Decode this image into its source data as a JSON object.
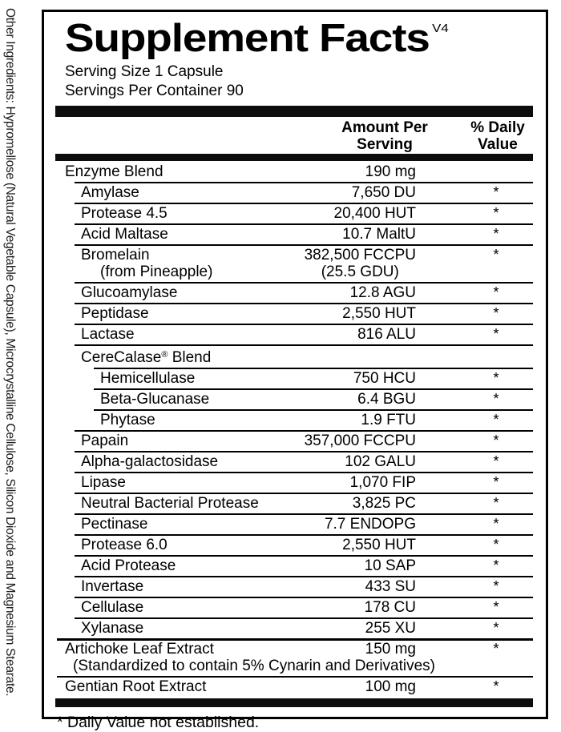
{
  "label": {
    "title": "Supplement Facts",
    "version": "V4",
    "serving_size": "Serving Size 1 Capsule",
    "servings_per_container": "Servings Per Container 90",
    "amount_header": "Amount Per\nServing",
    "dv_header": "% Daily\nValue",
    "footnote": "* Daily Value not established.",
    "side_text": "Other Ingredients: Hypromellose (Natural Vegetable Capsule), Microcrystalline Cellulose, Silicon Dioxide and Magnesium Stearate.",
    "colors": {
      "text": "#000000",
      "background": "#ffffff",
      "rule": "#000000"
    },
    "rows": [
      {
        "name": "Enzyme Blend",
        "amount": "190 mg",
        "dv": "",
        "level": 0,
        "divider": "none"
      },
      {
        "name": "Amylase",
        "amount": "7,650 DU",
        "dv": "*",
        "level": 1,
        "divider": "normal"
      },
      {
        "name": "Protease 4.5",
        "amount": "20,400 HUT",
        "dv": "*",
        "level": 1,
        "divider": "normal"
      },
      {
        "name": "Acid Maltase",
        "amount": "10.7 MaltU",
        "dv": "*",
        "level": 1,
        "divider": "normal"
      },
      {
        "name": "Bromelain",
        "name2": "(from Pineapple)",
        "amount": "382,500 FCCPU",
        "amount2": "(25.5 GDU)",
        "dv": "*",
        "level": 1,
        "divider": "normal"
      },
      {
        "name": "Glucoamylase",
        "amount": "12.8 AGU",
        "dv": "*",
        "level": 1,
        "divider": "normal"
      },
      {
        "name": "Peptidase",
        "amount": "2,550 HUT",
        "dv": "*",
        "level": 1,
        "divider": "normal"
      },
      {
        "name": "Lactase",
        "amount": "816 ALU",
        "dv": "*",
        "level": 1,
        "divider": "normal"
      },
      {
        "name": "CereCalase® Blend",
        "amount": "",
        "dv": "",
        "level": 1,
        "divider": "normal"
      },
      {
        "name": "Hemicellulase",
        "amount": "750 HCU",
        "dv": "*",
        "level": 2,
        "divider": "normal"
      },
      {
        "name": "Beta-Glucanase",
        "amount": "6.4 BGU",
        "dv": "*",
        "level": 2,
        "divider": "normal"
      },
      {
        "name": "Phytase",
        "amount": "1.9 FTU",
        "dv": "*",
        "level": 2,
        "divider": "normal"
      },
      {
        "name": "Papain",
        "amount": "357,000 FCCPU",
        "dv": "*",
        "level": 1,
        "divider": "normal"
      },
      {
        "name": "Alpha-galactosidase",
        "amount": "102 GALU",
        "dv": "*",
        "level": 1,
        "divider": "normal"
      },
      {
        "name": "Lipase",
        "amount": "1,070 FIP",
        "dv": "*",
        "level": 1,
        "divider": "normal"
      },
      {
        "name": "Neutral Bacterial Protease",
        "amount": "3,825 PC",
        "dv": "*",
        "level": 1,
        "divider": "normal"
      },
      {
        "name": "Pectinase",
        "amount": "7.7 ENDOPG",
        "dv": "*",
        "level": 1,
        "divider": "normal"
      },
      {
        "name": "Protease 6.0",
        "amount": "2,550 HUT",
        "dv": "*",
        "level": 1,
        "divider": "normal"
      },
      {
        "name": "Acid Protease",
        "amount": "10 SAP",
        "dv": "*",
        "level": 1,
        "divider": "normal"
      },
      {
        "name": "Invertase",
        "amount": "433 SU",
        "dv": "*",
        "level": 1,
        "divider": "normal"
      },
      {
        "name": "Cellulase",
        "amount": "178 CU",
        "dv": "*",
        "level": 1,
        "divider": "normal"
      },
      {
        "name": "Xylanase",
        "amount": "255 XU",
        "dv": "*",
        "level": 1,
        "divider": "normal"
      },
      {
        "name": "Artichoke Leaf Extract",
        "name2": "(Standardized to contain 5% Cynarin and Derivatives)",
        "amount": "150 mg",
        "dv": "*",
        "level": 0,
        "divider": "heavy"
      },
      {
        "name": "Gentian Root Extract",
        "amount": "100 mg",
        "dv": "*",
        "level": 0,
        "divider": "normal"
      }
    ]
  }
}
